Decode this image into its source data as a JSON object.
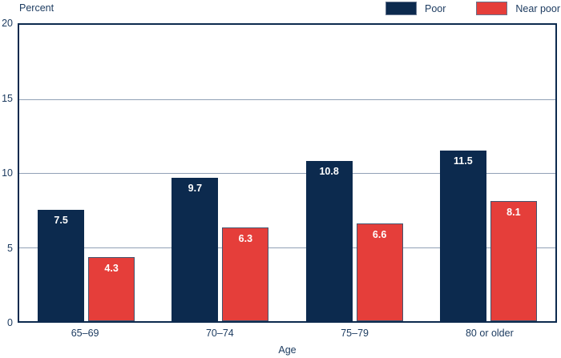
{
  "chart": {
    "y_axis_title": "Percent",
    "x_axis_title": "Age",
    "colors": {
      "poor": "#0c2a4e",
      "near_poor": "#e53e3a",
      "gridline": "#91a1b6",
      "axis_border": "#0c2a4e",
      "text": "#1b3a5f",
      "value_label": "#ffffff"
    }
  },
  "chart_data": {
    "type": "bar",
    "categories": [
      "65–69",
      "70–74",
      "75–79",
      "80 or older"
    ],
    "series": [
      {
        "name": "Poor",
        "color": "#0c2a4e",
        "values": [
          7.5,
          9.7,
          10.8,
          11.5
        ]
      },
      {
        "name": "Near poor",
        "color": "#e53e3a",
        "values": [
          4.3,
          6.3,
          6.6,
          8.1
        ]
      }
    ],
    "title": "",
    "xlabel": "Age",
    "ylabel": "Percent",
    "ylim": [
      0,
      20
    ],
    "y_ticks": [
      20,
      15,
      10,
      5,
      0
    ],
    "gridline_values": [
      15,
      10,
      5
    ],
    "grid": true,
    "legend_position": "top-right",
    "value_labels": true
  }
}
